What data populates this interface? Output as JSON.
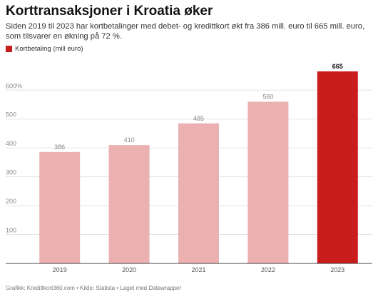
{
  "header": {
    "title": "Korttransaksjoner i Kroatia øker",
    "subtitle": "Siden 2019 til 2023 har kortbetalinger med debet- og kredittkort økt fra 386 mill. euro til 665 mill. euro, som tilsvarer en økning på 72 %."
  },
  "legend": {
    "label": "Kortbetaling (mill euro)",
    "color": "#c91d1d"
  },
  "chart_data": {
    "type": "bar",
    "categories": [
      "2019",
      "2020",
      "2021",
      "2022",
      "2023"
    ],
    "series": [
      {
        "name": "Kortbetaling (mill euro)",
        "values": [
          386,
          410,
          485,
          560,
          665
        ]
      }
    ],
    "highlight_index": 4,
    "colors": {
      "default": "#ebb1b1",
      "highlight": "#c91d1d"
    },
    "ylim": [
      0,
      665
    ],
    "yticks": [
      100,
      200,
      300,
      400,
      500,
      600
    ],
    "ytick_labels": [
      "100",
      "200",
      "300",
      "400",
      "500",
      "600%"
    ],
    "grid": true
  },
  "footer": {
    "credit": "Grafikk: Kredittkort360.com • Kilde: Statista • Laget med Datawrapper"
  }
}
